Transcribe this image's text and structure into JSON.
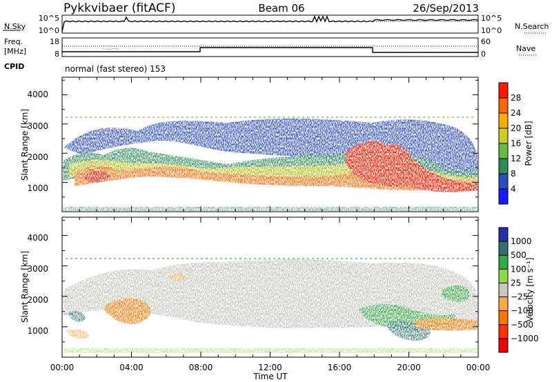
{
  "header": {
    "title": "Pykkvibaer (fitACF)",
    "beam": "Beam 06",
    "date": "26/Sep/2013"
  },
  "top_panels": {
    "nsky_label": "N.Sky",
    "nsky_ticks": [
      "10^5",
      "10^0"
    ],
    "nsearch_label": "N.Search",
    "nsearch_ticks": [
      "10^5",
      "10^0"
    ],
    "freq_label_1": "Freq.",
    "freq_label_2": "[MHz]",
    "freq_ticks": [
      "18",
      "8"
    ],
    "nave_label": "Nave",
    "nave_ticks": [
      "60",
      "0"
    ],
    "cpid_label": "CPID",
    "cpid_text": "normal (fast stereo) 153"
  },
  "colors": {
    "power_scale": [
      "#1a1aff",
      "#2a4fc0",
      "#2e8b57",
      "#66bb44",
      "#cccc22",
      "#ffaa00",
      "#ff6600",
      "#ff1a00"
    ],
    "velocity_scale": [
      "#2233aa",
      "#2f6f6f",
      "#33aa44",
      "#88dd44",
      "#c8c8c0",
      "#ffaa44",
      "#ff7700",
      "#ff3300",
      "#ee0000"
    ]
  },
  "chart_data": [
    {
      "type": "heatmap",
      "title": "",
      "xlabel": "Time UT",
      "ylabel": "Slant Range [km]",
      "xlim": [
        "00:00",
        "24:00"
      ],
      "ylim": [
        0,
        4600
      ],
      "x_ticks": [
        "00:00",
        "04:00",
        "08:00",
        "12:00",
        "16:00",
        "20:00",
        "00:00"
      ],
      "y_ticks": [
        "1000",
        "2000",
        "3000",
        "4000"
      ],
      "colorbar": {
        "label": "Power [dB]",
        "ticks": [
          "4",
          "8",
          "12",
          "16",
          "20",
          "24",
          "28"
        ]
      }
    },
    {
      "type": "heatmap",
      "title": "",
      "xlabel": "Time UT",
      "ylabel": "Slant Range [km]",
      "xlim": [
        "00:00",
        "24:00"
      ],
      "ylim": [
        0,
        4600
      ],
      "x_ticks": [
        "00:00",
        "04:00",
        "08:00",
        "12:00",
        "16:00",
        "20:00",
        "00:00"
      ],
      "y_ticks": [
        "1000",
        "2000",
        "3000",
        "4000"
      ],
      "colorbar": {
        "label": "Velocity [m s⁻¹]",
        "ticks": [
          "1000",
          "500",
          "100",
          "25",
          "−25",
          "−100",
          "−500",
          "−1000"
        ]
      }
    }
  ]
}
